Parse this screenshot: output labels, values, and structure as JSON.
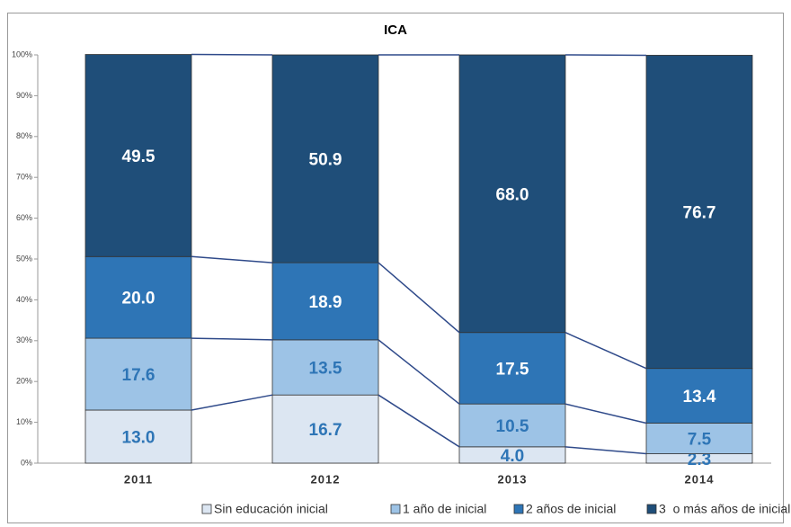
{
  "chart_data": {
    "type": "stacked_bar_100",
    "title": "ICA",
    "categories": [
      "2011",
      "2012",
      "2013",
      "2014"
    ],
    "series": [
      {
        "name": "Sin educación inicial",
        "color": "#dce6f2",
        "label_color": "#2e75b6",
        "values": [
          13.0,
          16.7,
          4.0,
          2.3
        ],
        "value_labels": [
          "13.0",
          "16.7",
          "4.0",
          "2.3"
        ]
      },
      {
        "name": "1 año de inicial",
        "color": "#9dc3e6",
        "label_color": "#2e75b6",
        "values": [
          17.6,
          13.5,
          10.5,
          7.5
        ],
        "value_labels": [
          "17.6",
          "13.5",
          "10.5",
          "7.5"
        ]
      },
      {
        "name": "2 años de inicial",
        "color": "#2e75b6",
        "label_color": "#ffffff",
        "values": [
          20.0,
          18.9,
          17.5,
          13.4
        ],
        "value_labels": [
          "20.0",
          "18.9",
          "17.5",
          "13.4"
        ]
      },
      {
        "name": "3  o más años de inicial",
        "color": "#1f4e79",
        "label_color": "#ffffff",
        "values": [
          49.5,
          50.9,
          68.0,
          76.7
        ],
        "value_labels": [
          "49.5",
          "50.9",
          "68.0",
          "76.7"
        ]
      }
    ],
    "ylim": [
      0,
      100
    ],
    "yticks": [
      {
        "value": 0,
        "label": "0%"
      },
      {
        "value": 10,
        "label": "10%"
      },
      {
        "value": 20,
        "label": "20%"
      },
      {
        "value": 30,
        "label": "30%"
      },
      {
        "value": 40,
        "label": "40%"
      },
      {
        "value": 50,
        "label": "50%"
      },
      {
        "value": 60,
        "label": "60%"
      },
      {
        "value": 70,
        "label": "70%"
      },
      {
        "value": 80,
        "label": "80%"
      },
      {
        "value": 90,
        "label": "90%"
      },
      {
        "value": 100,
        "label": "100%"
      }
    ],
    "grid": false,
    "legend": "bottom"
  }
}
